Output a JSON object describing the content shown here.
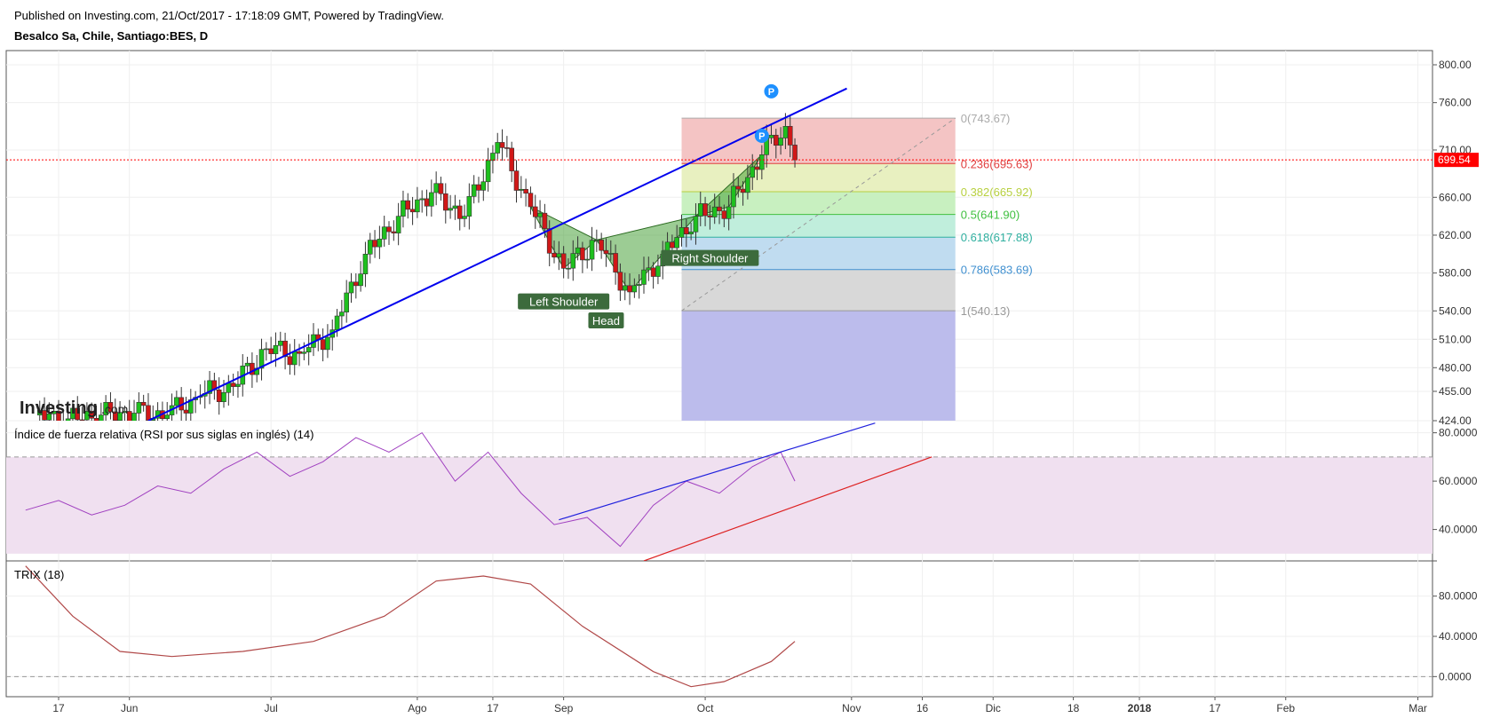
{
  "header": {
    "published": "Published on Investing.com, 21/Oct/2017 - 17:18:09 GMT, Powered by TradingView.",
    "symbol": "Besalco Sa, Chile, Santiago:BES, D"
  },
  "logo": {
    "text": "Investing",
    "suffix": ".com"
  },
  "colors": {
    "candle_up": "#1ec01e",
    "candle_down": "#d01818",
    "trendline": "#0000ee",
    "price_line": "#ff0000",
    "pattern_fill": "#3a9a2a",
    "rsi_line": "#a040c0",
    "rsi_band": "#f0e0f0",
    "trix_line": "#b04848",
    "label_bg": "#3c6b3c"
  },
  "chart_data": [
    {
      "type": "candlestick",
      "panel": "price",
      "ylim": [
        424,
        815
      ],
      "y_ticks": [
        {
          "value": 800,
          "label": "800.00"
        },
        {
          "value": 760,
          "label": "760.00"
        },
        {
          "value": 710,
          "label": "710.00"
        },
        {
          "value": 660,
          "label": "660.00"
        },
        {
          "value": 620,
          "label": "620.00"
        },
        {
          "value": 580,
          "label": "580.00"
        },
        {
          "value": 540,
          "label": "540.00"
        },
        {
          "value": 510,
          "label": "510.00"
        },
        {
          "value": 480,
          "label": "480.00"
        },
        {
          "value": 455,
          "label": "455.00"
        },
        {
          "value": 424,
          "label": "424.00"
        }
      ],
      "last_price": {
        "value": 699.54,
        "label": "699.54"
      },
      "x_labels": [
        "17",
        "Jun",
        "Jul",
        "Ago",
        "17",
        "Sep",
        "Oct",
        "Nov",
        "16",
        "Dic",
        "18",
        "2018",
        "17",
        "Feb",
        "Mar"
      ],
      "x_labels_bold": [
        "2018"
      ],
      "x_dates": [
        "2017-05-17",
        "2017-06-01",
        "2017-07-01",
        "2017-08-01",
        "2017-08-17",
        "2017-09-01",
        "2017-10-01",
        "2017-11-01",
        "2017-11-16",
        "2017-12-01",
        "2017-12-18",
        "2018-01-01",
        "2018-01-17",
        "2018-02-01",
        "2018-03-01"
      ],
      "closes": [
        {
          "date": "2017-05-12",
          "close": 430
        },
        {
          "date": "2017-05-19",
          "close": 426
        },
        {
          "date": "2017-05-26",
          "close": 430
        },
        {
          "date": "2017-06-02",
          "close": 432
        },
        {
          "date": "2017-06-09",
          "close": 430
        },
        {
          "date": "2017-06-16",
          "close": 450
        },
        {
          "date": "2017-06-23",
          "close": 460
        },
        {
          "date": "2017-06-30",
          "close": 500
        },
        {
          "date": "2017-07-07",
          "close": 495
        },
        {
          "date": "2017-07-14",
          "close": 520
        },
        {
          "date": "2017-07-21",
          "close": 600
        },
        {
          "date": "2017-07-28",
          "close": 640
        },
        {
          "date": "2017-08-04",
          "close": 665
        },
        {
          "date": "2017-08-11",
          "close": 640
        },
        {
          "date": "2017-08-18",
          "close": 718
        },
        {
          "date": "2017-08-25",
          "close": 650
        },
        {
          "date": "2017-09-01",
          "close": 585
        },
        {
          "date": "2017-09-08",
          "close": 615
        },
        {
          "date": "2017-09-15",
          "close": 560
        },
        {
          "date": "2017-09-22",
          "close": 600
        },
        {
          "date": "2017-09-29",
          "close": 640
        },
        {
          "date": "2017-10-06",
          "close": 650
        },
        {
          "date": "2017-10-13",
          "close": 705
        },
        {
          "date": "2017-10-18",
          "close": 735
        },
        {
          "date": "2017-10-20",
          "close": 699.54
        }
      ],
      "trendline": [
        {
          "date": "2017-06-05",
          "value": 424
        },
        {
          "date": "2017-10-31",
          "value": 775
        }
      ],
      "fibonacci": {
        "start_date": "2017-09-26",
        "end_date": "2017-11-23",
        "levels": [
          {
            "label": "0(743.67)",
            "value": 743.67,
            "color": "#aaaaaa",
            "fill": "#f4c4c4"
          },
          {
            "label": "0.236(695.63)",
            "value": 695.63,
            "color": "#e04040",
            "fill": "#e8f0c0"
          },
          {
            "label": "0.382(665.92)",
            "value": 665.92,
            "color": "#b8d040",
            "fill": "#c8f0c0"
          },
          {
            "label": "0.5(641.90)",
            "value": 641.9,
            "color": "#40c040",
            "fill": "#c0eedc"
          },
          {
            "label": "0.618(617.88)",
            "value": 617.88,
            "color": "#30b0a0",
            "fill": "#c0dcf0"
          },
          {
            "label": "0.786(583.69)",
            "value": 583.69,
            "color": "#4090d0",
            "fill": "#d8d8d8"
          },
          {
            "label": "1(540.13)",
            "value": 540.13,
            "color": "#999999",
            "fill": "#bcbcec"
          }
        ]
      },
      "head_shoulders": {
        "labels": [
          {
            "text": "Left Shoulder",
            "date": "2017-09-01",
            "value": 550
          },
          {
            "text": "Head",
            "date": "2017-09-10",
            "value": 530
          },
          {
            "text": "Right Shoulder",
            "date": "2017-10-02",
            "value": 596
          }
        ]
      },
      "markers": [
        {
          "text": "P",
          "date": "2017-10-13",
          "value": 725
        },
        {
          "text": "P",
          "date": "2017-10-15",
          "value": 772
        }
      ]
    },
    {
      "type": "line",
      "panel": "rsi",
      "title": "Índice de fuerza relativa (RSI por sus siglas en inglés) (14)",
      "ylim": [
        27,
        85
      ],
      "y_ticks": [
        {
          "value": 80,
          "label": "80.0000"
        },
        {
          "value": 60,
          "label": "60.0000"
        },
        {
          "value": 40,
          "label": "40.0000"
        }
      ],
      "band": [
        30,
        70
      ],
      "series": [
        {
          "date": "2017-05-10",
          "value": 48
        },
        {
          "date": "2017-05-17",
          "value": 52
        },
        {
          "date": "2017-05-24",
          "value": 46
        },
        {
          "date": "2017-05-31",
          "value": 50
        },
        {
          "date": "2017-06-07",
          "value": 58
        },
        {
          "date": "2017-06-14",
          "value": 55
        },
        {
          "date": "2017-06-21",
          "value": 65
        },
        {
          "date": "2017-06-28",
          "value": 72
        },
        {
          "date": "2017-07-05",
          "value": 62
        },
        {
          "date": "2017-07-12",
          "value": 68
        },
        {
          "date": "2017-07-19",
          "value": 78
        },
        {
          "date": "2017-07-26",
          "value": 72
        },
        {
          "date": "2017-08-02",
          "value": 80
        },
        {
          "date": "2017-08-09",
          "value": 60
        },
        {
          "date": "2017-08-16",
          "value": 72
        },
        {
          "date": "2017-08-23",
          "value": 55
        },
        {
          "date": "2017-08-30",
          "value": 42
        },
        {
          "date": "2017-09-06",
          "value": 45
        },
        {
          "date": "2017-09-13",
          "value": 33
        },
        {
          "date": "2017-09-20",
          "value": 50
        },
        {
          "date": "2017-09-27",
          "value": 60
        },
        {
          "date": "2017-10-04",
          "value": 55
        },
        {
          "date": "2017-10-11",
          "value": 66
        },
        {
          "date": "2017-10-17",
          "value": 72
        },
        {
          "date": "2017-10-20",
          "value": 60
        }
      ],
      "trendlines": [
        {
          "color": "#2020dd",
          "points": [
            {
              "date": "2017-08-31",
              "value": 44
            },
            {
              "date": "2017-11-06",
              "value": 84
            }
          ]
        },
        {
          "color": "#dd2020",
          "points": [
            {
              "date": "2017-09-18",
              "value": 27
            },
            {
              "date": "2017-11-18",
              "value": 70
            }
          ]
        }
      ]
    },
    {
      "type": "line",
      "panel": "trix",
      "title": "TRIX (18)",
      "ylim": [
        -20,
        115
      ],
      "y_ticks": [
        {
          "value": 80,
          "label": "80.0000"
        },
        {
          "value": 40,
          "label": "40.0000"
        },
        {
          "value": 0,
          "label": "0.0000"
        }
      ],
      "zero_line": 0,
      "series": [
        {
          "date": "2017-05-10",
          "value": 110
        },
        {
          "date": "2017-05-20",
          "value": 60
        },
        {
          "date": "2017-05-30",
          "value": 25
        },
        {
          "date": "2017-06-10",
          "value": 20
        },
        {
          "date": "2017-06-25",
          "value": 25
        },
        {
          "date": "2017-07-10",
          "value": 35
        },
        {
          "date": "2017-07-25",
          "value": 60
        },
        {
          "date": "2017-08-05",
          "value": 95
        },
        {
          "date": "2017-08-15",
          "value": 100
        },
        {
          "date": "2017-08-25",
          "value": 92
        },
        {
          "date": "2017-09-05",
          "value": 50
        },
        {
          "date": "2017-09-20",
          "value": 5
        },
        {
          "date": "2017-09-28",
          "value": -10
        },
        {
          "date": "2017-10-05",
          "value": -5
        },
        {
          "date": "2017-10-15",
          "value": 15
        },
        {
          "date": "2017-10-20",
          "value": 35
        }
      ]
    }
  ]
}
